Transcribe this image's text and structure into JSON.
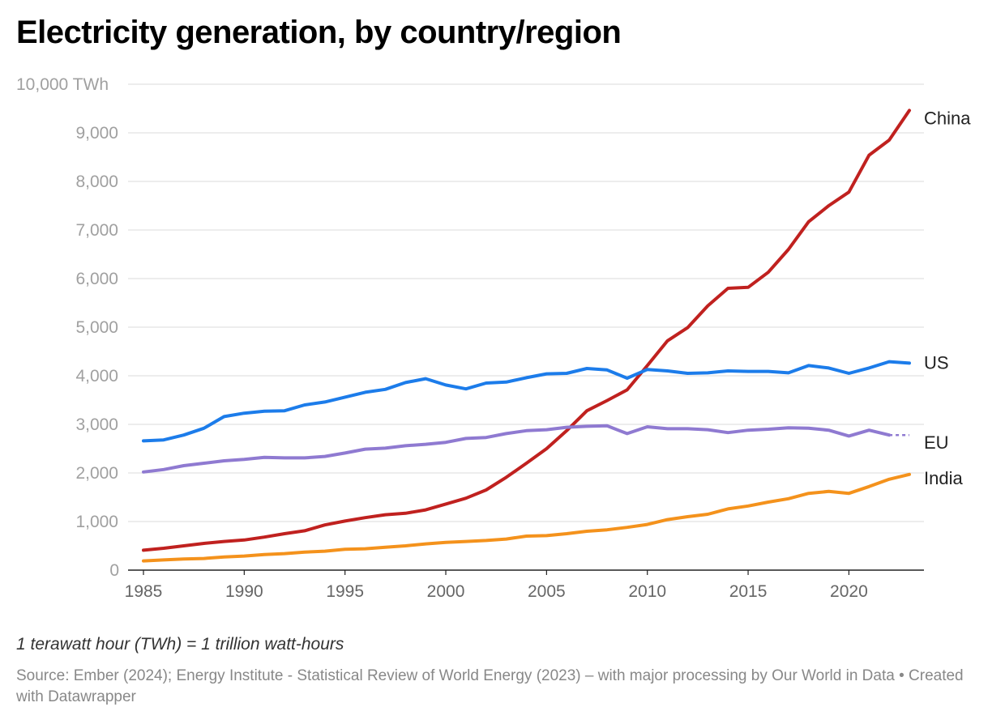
{
  "title": "Electricity generation, by country/region",
  "note": "1 terawatt hour (TWh) = 1 trillion watt-hours",
  "source": "Source: Ember (2024); Energy Institute - Statistical Review of World Energy (2023) – with major processing by Our World in Data • Created with Datawrapper",
  "chart_data": {
    "type": "line",
    "title": "Electricity generation, by country/region",
    "xlabel": "",
    "ylabel": "",
    "xlim": [
      1985,
      2023
    ],
    "ylim": [
      0,
      10000
    ],
    "x_ticks": [
      "1985",
      "1990",
      "1995",
      "2000",
      "2005",
      "2010",
      "2015",
      "2020"
    ],
    "y_ticks": [
      "0",
      "1,000",
      "2,000",
      "3,000",
      "4,000",
      "5,000",
      "6,000",
      "7,000",
      "8,000",
      "9,000",
      "10,000 TWh"
    ],
    "grid": true,
    "legend": "direct labels at line ends",
    "x": [
      1985,
      1986,
      1987,
      1988,
      1989,
      1990,
      1991,
      1992,
      1993,
      1994,
      1995,
      1996,
      1997,
      1998,
      1999,
      2000,
      2001,
      2002,
      2003,
      2004,
      2005,
      2006,
      2007,
      2008,
      2009,
      2010,
      2011,
      2012,
      2013,
      2014,
      2015,
      2016,
      2017,
      2018,
      2019,
      2020,
      2021,
      2022,
      2023
    ],
    "series": [
      {
        "name": "China",
        "color": "#c0211f",
        "values": [
          410,
          450,
          500,
          550,
          590,
          620,
          680,
          750,
          810,
          930,
          1010,
          1080,
          1140,
          1170,
          1240,
          1360,
          1480,
          1650,
          1910,
          2200,
          2500,
          2870,
          3280,
          3490,
          3710,
          4210,
          4720,
          4990,
          5440,
          5800,
          5820,
          6130,
          6600,
          7170,
          7500,
          7780,
          8540,
          8850,
          9460
        ]
      },
      {
        "name": "US",
        "color": "#1c7cea",
        "values": [
          2660,
          2680,
          2780,
          2920,
          3160,
          3230,
          3270,
          3280,
          3400,
          3460,
          3560,
          3660,
          3720,
          3860,
          3940,
          3810,
          3730,
          3850,
          3870,
          3960,
          4040,
          4050,
          4150,
          4120,
          3950,
          4130,
          4100,
          4050,
          4060,
          4100,
          4090,
          4090,
          4060,
          4210,
          4160,
          4050,
          4160,
          4290,
          4260
        ]
      },
      {
        "name": "EU",
        "color": "#8f7ad1",
        "values": [
          2020,
          2070,
          2150,
          2200,
          2250,
          2280,
          2320,
          2310,
          2310,
          2340,
          2410,
          2490,
          2510,
          2560,
          2590,
          2630,
          2710,
          2730,
          2810,
          2870,
          2890,
          2940,
          2960,
          2970,
          2810,
          2950,
          2910,
          2910,
          2890,
          2830,
          2880,
          2900,
          2930,
          2920,
          2880,
          2760,
          2880,
          2780,
          2780
        ],
        "dashed_from": 2022
      },
      {
        "name": "India",
        "color": "#f4921c",
        "values": [
          190,
          210,
          230,
          240,
          270,
          290,
          320,
          340,
          370,
          390,
          430,
          440,
          470,
          500,
          540,
          570,
          590,
          610,
          640,
          700,
          710,
          750,
          800,
          830,
          880,
          940,
          1040,
          1100,
          1150,
          1260,
          1320,
          1400,
          1470,
          1580,
          1620,
          1580,
          1720,
          1870,
          1970
        ]
      }
    ]
  }
}
